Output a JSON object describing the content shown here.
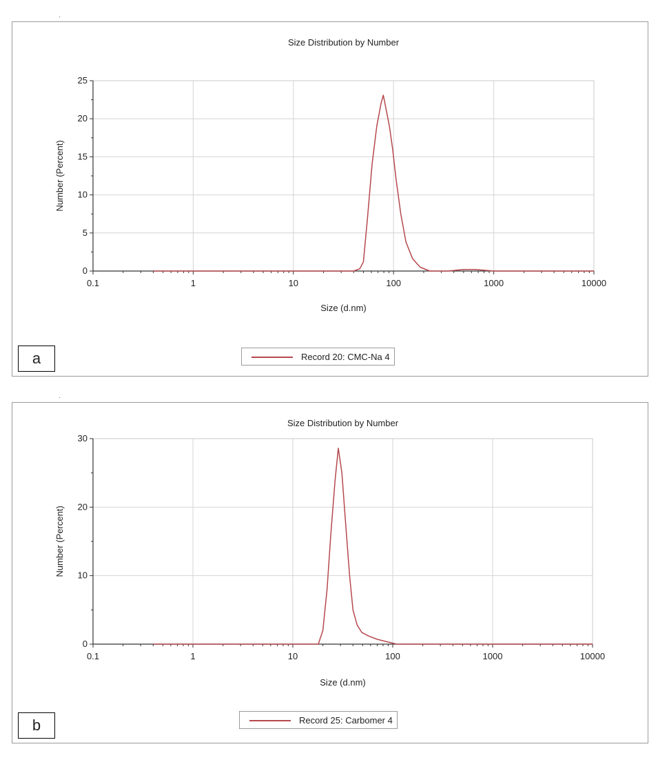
{
  "panels": [
    {
      "label": "a",
      "chart_data": {
        "type": "line",
        "title": "Size Distribution by Number",
        "xlabel": "Size (d.nm)",
        "ylabel": "Number (Percent)",
        "x_scale": "log",
        "xlim": [
          0.1,
          10000
        ],
        "ylim": [
          0,
          25
        ],
        "x_ticks": [
          "0.1",
          "1",
          "10",
          "100",
          "1000",
          "10000"
        ],
        "y_ticks": [
          "0",
          "5",
          "10",
          "15",
          "20",
          "25"
        ],
        "grid": true,
        "legend_placement": "bottom-center",
        "series": [
          {
            "name": "Record 20: CMC-Na 4",
            "color": "#b5484d",
            "x": [
              0.4,
              1,
              10,
              40,
              46,
              50,
              55,
              61,
              68,
              75,
              79,
              85,
              91,
              98,
              106,
              118,
              133,
              155,
              185,
              230,
              350,
              500,
              650,
              1000,
              10000
            ],
            "y": [
              0,
              0,
              0,
              0,
              0.3,
              1.2,
              7,
              14,
              19,
              22,
              23.1,
              21,
              19,
              16,
              12,
              7.5,
              3.8,
              1.6,
              0.5,
              0,
              0,
              0.2,
              0.2,
              0,
              0
            ]
          }
        ]
      }
    },
    {
      "label": "b",
      "chart_data": {
        "type": "line",
        "title": "Size Distribution by Number",
        "xlabel": "Size (d.nm)",
        "ylabel": "Number (Percent)",
        "x_scale": "log",
        "xlim": [
          0.1,
          10000
        ],
        "ylim": [
          0,
          30
        ],
        "x_ticks": [
          "0.1",
          "1",
          "10",
          "100",
          "1000",
          "10000"
        ],
        "y_ticks": [
          "0",
          "10",
          "20",
          "30"
        ],
        "grid": true,
        "legend_placement": "bottom-center",
        "series": [
          {
            "name": "Record 25: Carbomer 4",
            "color": "#b5484d",
            "x": [
              0.4,
              1,
              10,
              18,
              20,
              22,
              24,
              26.5,
              28.5,
              31,
              34,
              37,
              40,
              44,
              49,
              57,
              70,
              90,
              110,
              1000,
              10000
            ],
            "y": [
              0,
              0,
              0,
              0,
              2,
              8,
              16,
              24,
              28.6,
              25,
              17,
              10,
              5,
              2.8,
              1.7,
              1.2,
              0.7,
              0.3,
              0,
              0,
              0
            ]
          }
        ]
      }
    }
  ]
}
